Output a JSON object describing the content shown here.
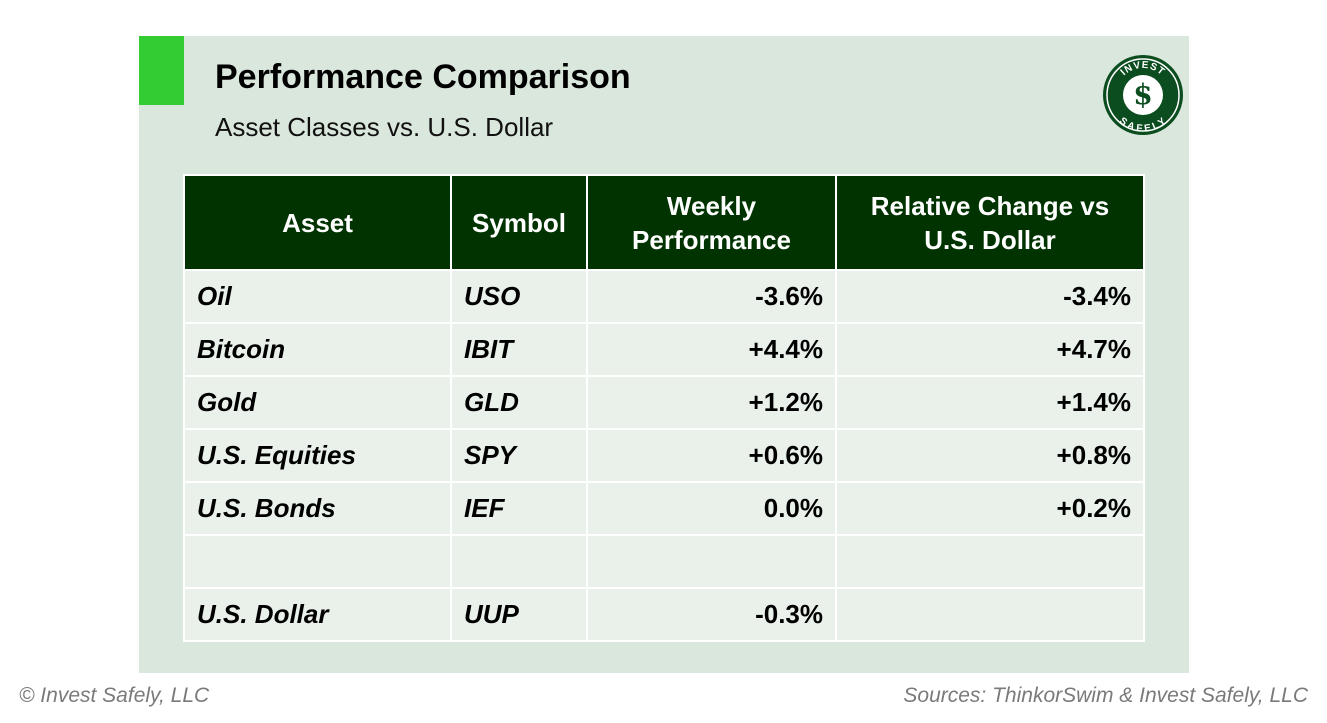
{
  "header": {
    "title": "Performance Comparison",
    "subtitle": "Asset Classes vs. U.S. Dollar"
  },
  "logo": {
    "top_text": "INVEST",
    "bottom_text": "SAFELY",
    "symbol": "$",
    "color": "#0b4d1f"
  },
  "table": {
    "columns": [
      "Asset",
      "Symbol",
      "Weekly Performance",
      "Relative Change vs U.S. Dollar"
    ],
    "rows": [
      {
        "asset": "Oil",
        "symbol": "USO",
        "weekly": "-3.6%",
        "relative": "-3.4%"
      },
      {
        "asset": "Bitcoin",
        "symbol": "IBIT",
        "weekly": "+4.4%",
        "relative": "+4.7%"
      },
      {
        "asset": "Gold",
        "symbol": "GLD",
        "weekly": "+1.2%",
        "relative": "+1.4%"
      },
      {
        "asset": "U.S. Equities",
        "symbol": "SPY",
        "weekly": "+0.6%",
        "relative": "+0.8%"
      },
      {
        "asset": "U.S. Bonds",
        "symbol": "IEF",
        "weekly": "0.0%",
        "relative": "+0.2%"
      }
    ],
    "benchmark": {
      "asset": "U.S. Dollar",
      "symbol": "UUP",
      "weekly": "-0.3%",
      "relative": ""
    }
  },
  "colors": {
    "negative": "#ff0000",
    "positive": "#008000",
    "header_bg": "#003300",
    "accent": "#33cc33",
    "panel_bg": "#dae7dc"
  },
  "footer": {
    "left": "© Invest Safely, LLC",
    "right": "Sources: ThinkorSwim & Invest Safely, LLC"
  }
}
